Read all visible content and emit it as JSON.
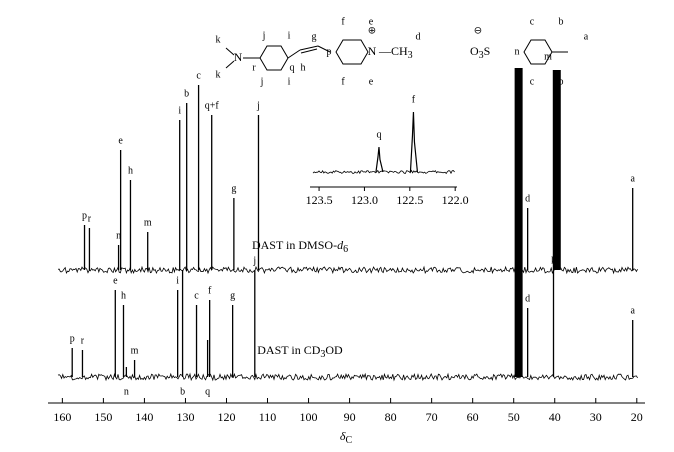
{
  "chart_data": {
    "type": "nmr",
    "xlim": [
      163.5,
      18
    ],
    "xticks": [
      160,
      150,
      140,
      130,
      120,
      110,
      100,
      90,
      80,
      70,
      60,
      50,
      40,
      30,
      20
    ],
    "xlabel": "δ",
    "xlabel_sub": "C",
    "series": [
      {
        "label": [
          "DAST in DMSO-",
          "d",
          "6"
        ],
        "x": [
          154.6,
          153.4,
          146.3,
          145.8,
          143.4,
          139.2,
          131.4,
          129.7,
          126.8,
          123.6,
          118.2,
          112.2,
          46.6,
          39.5,
          21.0
        ],
        "values": [
          45,
          42,
          25,
          120,
          90,
          38,
          150,
          167,
          185,
          155,
          72,
          155,
          62,
          200,
          82
        ],
        "labels": [
          "p",
          "r",
          "n",
          "e",
          "h",
          "m",
          "i",
          "b",
          "c",
          "q+f",
          "g",
          "j",
          "d",
          null,
          "a"
        ],
        "label_below": [
          false,
          false,
          false,
          false,
          false,
          false,
          false,
          false,
          false,
          false,
          false,
          false,
          false,
          false,
          false
        ]
      },
      {
        "label": [
          "DAST in CD",
          "3",
          "OD"
        ],
        "x": [
          157.6,
          155.1,
          147.1,
          145.1,
          144.4,
          142.4,
          131.9,
          130.7,
          127.3,
          124.6,
          124.1,
          118.5,
          113.1,
          48.8,
          46.6,
          40.3,
          21.0
        ],
        "values": [
          29,
          27,
          87,
          72,
          10,
          17,
          87,
          107,
          72,
          37,
          77,
          72,
          107,
          309,
          69,
          107,
          57
        ],
        "labels": [
          "p",
          "r",
          "e",
          "h",
          "n",
          "m",
          "i",
          "b",
          "c",
          "q",
          "f",
          "g",
          "j",
          null,
          "d",
          "k",
          "a"
        ],
        "label_below": [
          false,
          false,
          false,
          false,
          true,
          false,
          false,
          true,
          false,
          true,
          false,
          false,
          false,
          false,
          false,
          false,
          false
        ]
      }
    ],
    "inset": {
      "xlim": [
        123.6,
        121.98
      ],
      "xticks": [
        123.5,
        {
          "value": 123,
          "label": "123.0"
        },
        122.5,
        {
          "value": 122,
          "label": "122.0"
        }
      ],
      "x": [
        122.84,
        122.46
      ],
      "values": [
        25,
        60
      ],
      "labels": [
        "q",
        "f"
      ]
    }
  },
  "structure": {
    "labels": [
      "k",
      "k",
      "N",
      "j",
      "i",
      "r",
      "q",
      "j",
      "i",
      "g",
      "h",
      "f",
      "e",
      "p",
      "f",
      "e",
      "N",
      "⊕",
      "—CH",
      "3",
      "d",
      "⊖",
      "O",
      "3",
      "S",
      "c",
      "b",
      "n",
      "m",
      "a",
      "c",
      "b"
    ]
  }
}
